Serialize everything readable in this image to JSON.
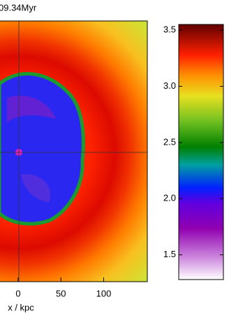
{
  "chart_data": {
    "type": "image",
    "title": "09.34Myr",
    "xlabel": "x / kpc",
    "xlim": [
      -22,
      151
    ],
    "xticks": [
      0,
      50,
      100
    ],
    "colorbar": {
      "lim": [
        1.28,
        3.55
      ],
      "ticks": [
        1.5,
        {
          "value": 2.0,
          "label": "2.0"
        },
        2.5,
        {
          "value": 3.0,
          "label": "3.0"
        },
        3.5
      ]
    }
  }
}
